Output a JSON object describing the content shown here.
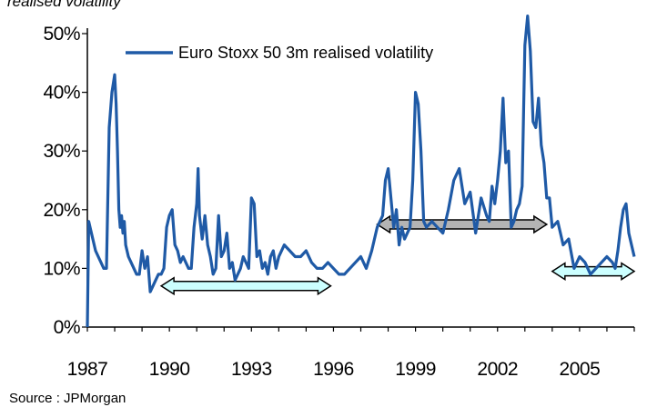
{
  "chart_data": {
    "type": "line",
    "title": "",
    "ylabel": "realised volatility",
    "xlabel": "",
    "xlim": [
      1987,
      2007.0
    ],
    "ylim": [
      0,
      50
    ],
    "yticks": [
      "0%",
      "10%",
      "20%",
      "30%",
      "40%",
      "50%"
    ],
    "xticks": [
      "1987",
      "1990",
      "1993",
      "1996",
      "1999",
      "2002",
      "2005"
    ],
    "legend_position": "top-left",
    "grid": false,
    "series": [
      {
        "name": "Euro Stoxx 50 3m realised volatility",
        "color": "#1f5aa6",
        "x": [
          1987.0,
          1987.05,
          1987.1,
          1987.2,
          1987.3,
          1987.4,
          1987.5,
          1987.6,
          1987.7,
          1987.8,
          1987.9,
          1988.0,
          1988.05,
          1988.1,
          1988.15,
          1988.2,
          1988.25,
          1988.3,
          1988.35,
          1988.4,
          1988.5,
          1988.6,
          1988.7,
          1988.8,
          1988.9,
          1989.0,
          1989.1,
          1989.2,
          1989.3,
          1989.4,
          1989.5,
          1989.6,
          1989.7,
          1989.8,
          1989.9,
          1990.0,
          1990.1,
          1990.2,
          1990.3,
          1990.4,
          1990.5,
          1990.6,
          1990.7,
          1990.8,
          1990.9,
          1991.0,
          1991.05,
          1991.1,
          1991.2,
          1991.3,
          1991.4,
          1991.5,
          1991.6,
          1991.7,
          1991.8,
          1991.9,
          1992.0,
          1992.1,
          1992.2,
          1992.3,
          1992.4,
          1992.5,
          1992.6,
          1992.7,
          1992.8,
          1992.9,
          1993.0,
          1993.1,
          1993.2,
          1993.3,
          1993.4,
          1993.5,
          1993.6,
          1993.7,
          1993.8,
          1993.9,
          1994.0,
          1994.2,
          1994.4,
          1994.6,
          1994.8,
          1995.0,
          1995.2,
          1995.4,
          1995.6,
          1995.8,
          1996.0,
          1996.2,
          1996.4,
          1996.6,
          1996.8,
          1997.0,
          1997.2,
          1997.4,
          1997.6,
          1997.8,
          1997.9,
          1998.0,
          1998.2,
          1998.3,
          1998.4,
          1998.5,
          1998.6,
          1998.7,
          1998.8,
          1998.9,
          1999.0,
          1999.1,
          1999.2,
          1999.3,
          1999.4,
          1999.6,
          1999.8,
          2000.0,
          2000.2,
          2000.4,
          2000.6,
          2000.8,
          2001.0,
          2001.2,
          2001.4,
          2001.6,
          2001.7,
          2001.8,
          2001.9,
          2002.0,
          2002.1,
          2002.2,
          2002.3,
          2002.4,
          2002.5,
          2002.6,
          2002.7,
          2002.8,
          2002.9,
          2003.0,
          2003.1,
          2003.2,
          2003.3,
          2003.4,
          2003.5,
          2003.6,
          2003.7,
          2003.8,
          2003.9,
          2004.0,
          2004.2,
          2004.4,
          2004.6,
          2004.8,
          2005.0,
          2005.2,
          2005.4,
          2005.6,
          2005.8,
          2006.0,
          2006.2,
          2006.3,
          2006.4,
          2006.5,
          2006.6,
          2006.7,
          2006.8,
          2006.9,
          2007.0
        ],
        "values": [
          0,
          18,
          17,
          15,
          13,
          12,
          11,
          10,
          10,
          34,
          40,
          43,
          38,
          30,
          20,
          17,
          19,
          16,
          18,
          14,
          12,
          11,
          10,
          9,
          9,
          13,
          10,
          12,
          6,
          7,
          8,
          9,
          9,
          10,
          17,
          19,
          20,
          14,
          13,
          11,
          12,
          11,
          10,
          10,
          17,
          21,
          27,
          19,
          15,
          19,
          14,
          12,
          9,
          10,
          19,
          12,
          13,
          16,
          10,
          11,
          8,
          9,
          10,
          12,
          11,
          10,
          22,
          21,
          12,
          13,
          10,
          11,
          9,
          12,
          13,
          10,
          12,
          14,
          13,
          12,
          12,
          13,
          11,
          10,
          10,
          11,
          10,
          9,
          9,
          10,
          11,
          12,
          10,
          13,
          17,
          19,
          25,
          27,
          17,
          20,
          14,
          17,
          15,
          16,
          17,
          25,
          40,
          38,
          30,
          18,
          17,
          18,
          17,
          16,
          20,
          25,
          27,
          21,
          23,
          16,
          22,
          19,
          18,
          24,
          21,
          25,
          30,
          39,
          28,
          30,
          17,
          18,
          20,
          21,
          24,
          48,
          53,
          47,
          35,
          34,
          39,
          31,
          28,
          22,
          22,
          17,
          18,
          14,
          15,
          10,
          12,
          11,
          9,
          10,
          11,
          12,
          11,
          10,
          13,
          17,
          20,
          21,
          16,
          14,
          12
        ]
      }
    ],
    "annotations": [
      {
        "type": "double-arrow",
        "from": 1989.7,
        "to": 1995.9,
        "y": 7,
        "color": "#ccffff"
      },
      {
        "type": "double-arrow",
        "from": 1997.6,
        "to": 2003.8,
        "y": 17.5,
        "color": "#b4b4b4"
      },
      {
        "type": "double-arrow",
        "from": 2004.0,
        "to": 2007.0,
        "y": 9.5,
        "color": "#ccffff"
      }
    ]
  },
  "source": "Source : JPMorgan"
}
